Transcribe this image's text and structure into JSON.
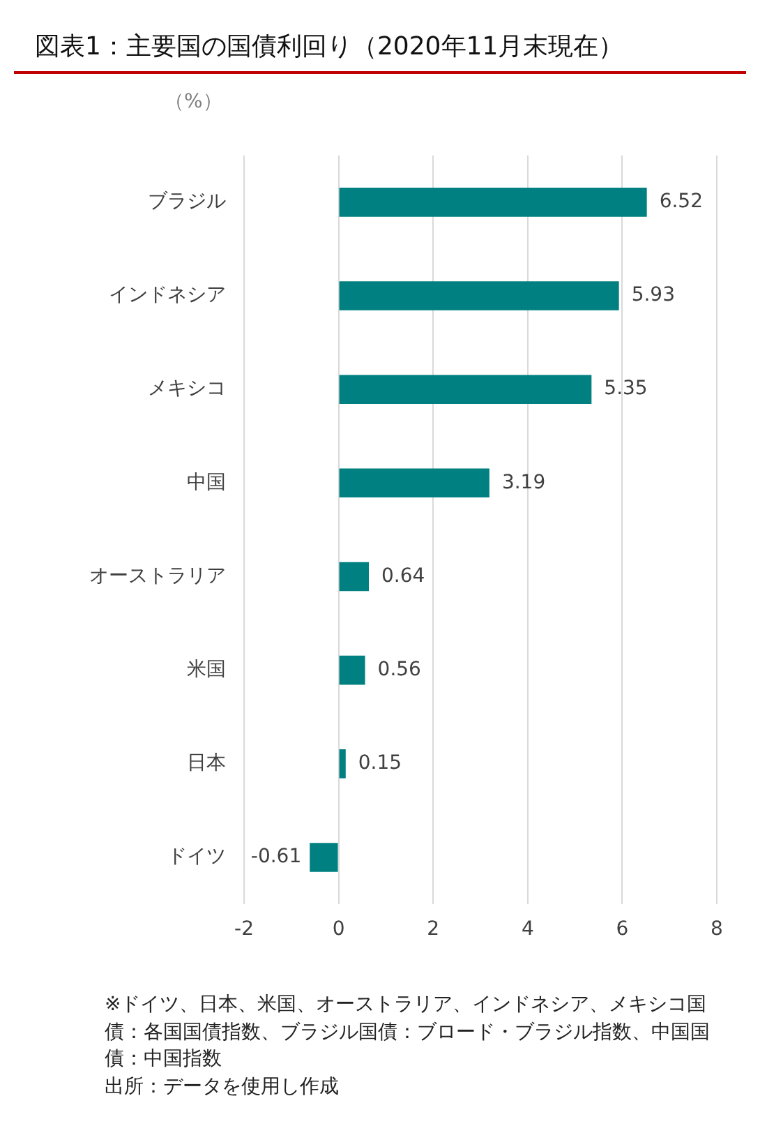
{
  "chart_data": {
    "type": "bar",
    "orientation": "horizontal",
    "title": "図表1：主要国の国債利回り（2020年11月末現在）",
    "xlabel": "（%）",
    "categories": [
      "ブラジル",
      "インドネシア",
      "メキシコ",
      "中国",
      "オーストラリア",
      "米国",
      "日本",
      "ドイツ"
    ],
    "values": [
      6.52,
      5.93,
      5.35,
      3.19,
      0.64,
      0.56,
      0.15,
      -0.61
    ],
    "color": "#008080",
    "xlim": [
      -2,
      8
    ],
    "xticks": [
      -2,
      0,
      2,
      4,
      6,
      8
    ],
    "grid": "x",
    "data_labels": true,
    "annotations": [
      "※ドイツ、日本、米国、オーストラリア、インドネシア、メキシコ国債：各国国債指数、ブラジル国債：ブロード・ブラジル指数、中国国債：中国指数",
      "出所：データを使用し作成"
    ]
  }
}
